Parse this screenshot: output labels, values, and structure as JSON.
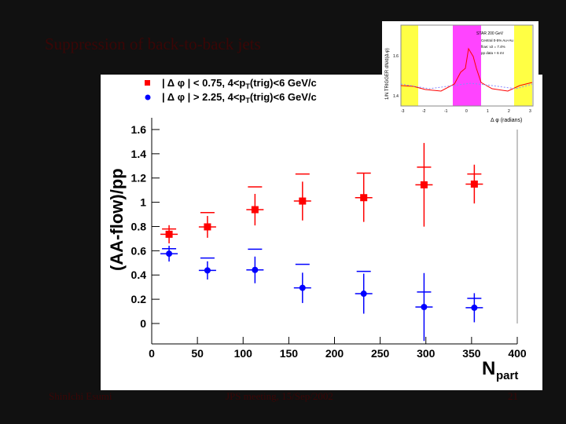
{
  "slide": {
    "title": "Suppression of back-to-back jets",
    "footer_left": "ShinIchi Esumi",
    "footer_center": "JPS meeting, 15/Sep/2002",
    "page_number": "21"
  },
  "inset": {
    "xlabel": "Δ φ (radians)",
    "ylabel": "1/N TRIGGER dN/d(Δ φ)",
    "legend": [
      "STAR 200 GeV",
      "Central 0-5% Au+Au",
      "flow: v2 = 7.4%",
      "pp data + 6 mr"
    ],
    "xticks": [
      "-3",
      "-2",
      "-1",
      "0",
      "1",
      "2",
      "3"
    ],
    "yticks": [
      "1.6",
      "1.4"
    ]
  },
  "chart_data": {
    "type": "scatter",
    "xlabel": "N",
    "xlabel_sub": "part",
    "ylabel": "(AA-flow)/pp",
    "xlim": [
      0,
      400
    ],
    "ylim": [
      -0.2,
      1.75
    ],
    "xticks": [
      "0",
      "50",
      "100",
      "150",
      "200",
      "250",
      "300",
      "350",
      "400"
    ],
    "yticks": [
      "0",
      "0.2",
      "0.4",
      "0.6",
      "0.8",
      "1",
      "1.2",
      "1.4",
      "1.6"
    ],
    "series": [
      {
        "name": "| Δ φ | < 0.75, 4<p",
        "name_sub": "T",
        "name_tail": "(trig)<6 GeV/c",
        "color": "#ff0000",
        "marker": "square",
        "x": [
          19,
          61,
          113,
          165,
          232,
          298,
          353
        ],
        "y": [
          0.736,
          0.797,
          0.939,
          1.01,
          1.038,
          1.144,
          1.15
        ],
        "yerr": [
          0.075,
          0.09,
          0.13,
          0.16,
          0.2,
          0.345,
          0.16
        ],
        "sys_upper": [
          0.78,
          0.915,
          1.127,
          1.233,
          1.24,
          1.29,
          1.233
        ]
      },
      {
        "name": "| Δ φ | > 2.25, 4<p",
        "name_sub": "T",
        "name_tail": "(trig)<6 GeV/c",
        "color": "#0000ff",
        "marker": "circle",
        "x": [
          19,
          61,
          113,
          165,
          232,
          298,
          353
        ],
        "y": [
          0.576,
          0.438,
          0.442,
          0.294,
          0.246,
          0.136,
          0.13
        ],
        "yerr": [
          0.065,
          0.075,
          0.11,
          0.125,
          0.165,
          0.28,
          0.12
        ],
        "sys_upper": [
          0.617,
          0.54,
          0.613,
          0.488,
          0.43,
          0.26,
          0.207
        ]
      }
    ]
  }
}
